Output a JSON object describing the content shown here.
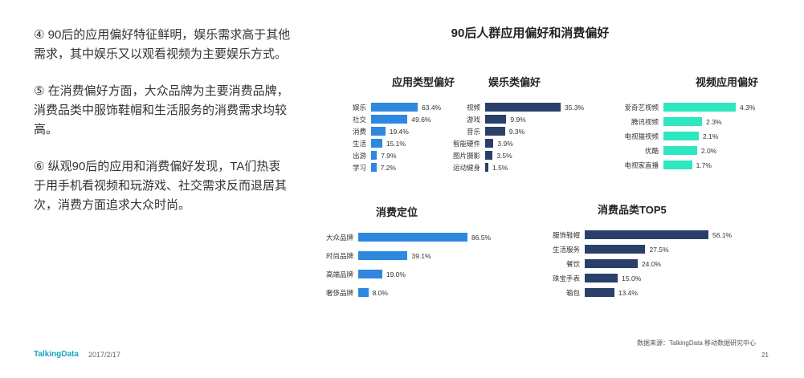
{
  "left_text": {
    "p1": "④ 90后的应用偏好特征鲜明，娱乐需求高于其他需求，其中娱乐又以观看视频为主要娱乐方式。",
    "p2": "⑤ 在消费偏好方面，大众品牌为主要消费品牌，消费品类中服饰鞋帽和生活服务的消费需求均较高。",
    "p3": "⑥ 纵观90后的应用和消费偏好发现，TA们热衷于用手机看视频和玩游戏、社交需求反而退居其次，消费方面追求大众时尚。"
  },
  "main_title": "90后人群应用偏好和消费偏好",
  "colors": {
    "blue": "#2f88e0",
    "navy": "#2b3f6b",
    "teal": "#2ee6c0"
  },
  "chart_data": [
    {
      "type": "bar",
      "title": "应用类型偏好",
      "categories": [
        "娱乐",
        "社交",
        "消费",
        "生活",
        "出游",
        "学习"
      ],
      "values": [
        63.4,
        49.6,
        19.4,
        15.1,
        7.9,
        7.2
      ],
      "labels": [
        "63.4%",
        "49.6%",
        "19.4%",
        "15.1%",
        "7.9%",
        "7.2%"
      ],
      "unit": "%",
      "color": "#2f88e0"
    },
    {
      "type": "bar",
      "title": "娱乐类偏好",
      "categories": [
        "视频",
        "游戏",
        "音乐",
        "智能硬件",
        "图片摄影",
        "运动健身"
      ],
      "values": [
        35.3,
        9.9,
        9.3,
        3.9,
        3.5,
        1.5
      ],
      "labels": [
        "35.3%",
        "9.9%",
        "9.3%",
        "3.9%",
        "3.5%",
        "1.5%"
      ],
      "unit": "%",
      "color": "#2b3f6b"
    },
    {
      "type": "bar",
      "title": "视频应用偏好",
      "categories": [
        "爱奇艺视频",
        "腾讯视频",
        "电视猫视频",
        "优酷",
        "电视家直播"
      ],
      "values": [
        4.3,
        2.3,
        2.1,
        2.0,
        1.7
      ],
      "labels": [
        "4.3%",
        "2.3%",
        "2.1%",
        "2.0%",
        "1.7%"
      ],
      "unit": "%",
      "color": "#2ee6c0"
    },
    {
      "type": "bar",
      "title": "消费定位",
      "categories": [
        "大众品牌",
        "时尚品牌",
        "高端品牌",
        "奢侈品牌"
      ],
      "values": [
        86.5,
        39.1,
        19.0,
        8.0
      ],
      "labels": [
        "86.5%",
        "39.1%",
        "19.0%",
        "8.0%"
      ],
      "unit": "%",
      "color": "#2f88e0"
    },
    {
      "type": "bar",
      "title": "消费品类TOP5",
      "categories": [
        "服饰鞋帽",
        "生活服务",
        "餐饮",
        "珠宝手表",
        "箱包"
      ],
      "values": [
        56.1,
        27.5,
        24.0,
        15.0,
        13.4
      ],
      "labels": [
        "56.1%",
        "27.5%",
        "24.0%",
        "15.0%",
        "13.4%"
      ],
      "unit": "%",
      "color": "#2b3f6b"
    }
  ],
  "footer": {
    "logo": "TalkingData",
    "date": "2017/2/17",
    "source": "数据来源：TalkingData 移动数据研究中心",
    "page": "21"
  }
}
